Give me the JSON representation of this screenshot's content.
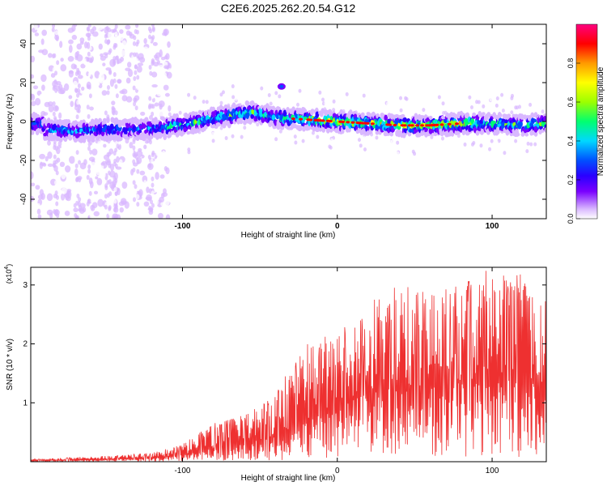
{
  "figure": {
    "title": "C2E6.2025.262.20.54.G12"
  },
  "chart_data": [
    {
      "type": "heatmap",
      "title": "C2E6.2025.262.20.54.G12",
      "xlabel": "Height of straight line (km)",
      "ylabel": "Frequency (Hz)",
      "xlim": [
        -198,
        135
      ],
      "ylim": [
        -50,
        50
      ],
      "x_ticks": [
        -100,
        0,
        100
      ],
      "y_ticks": [
        -40,
        -20,
        0,
        20,
        40
      ],
      "colorbar": {
        "label": "Normalized spectral amplitude",
        "range": [
          0,
          1
        ],
        "ticks": [
          "0.0",
          "0.2",
          "0.4",
          "0.6",
          "0.8"
        ],
        "tick_values": [
          0,
          0.2,
          0.4,
          0.6,
          0.8
        ],
        "colors": [
          "#ffffff",
          "#d9b8ff",
          "#7a00ff",
          "#2a00ff",
          "#0050ff",
          "#00d8ff",
          "#00ff70",
          "#9cff00",
          "#ffff00",
          "#ff9a00",
          "#ff0000",
          "#ff0080"
        ]
      },
      "ridge": {
        "description_points_x": [
          -190,
          -170,
          -150,
          -130,
          -110,
          -90,
          -70,
          -55,
          -40,
          -20,
          0,
          20,
          40,
          60,
          80,
          100,
          120,
          135
        ],
        "frequency_hz": [
          -4,
          -5,
          -4,
          -4,
          -3,
          0,
          3,
          5,
          2,
          1,
          0,
          -1,
          -2,
          -2,
          -1,
          -1,
          -2,
          -1
        ]
      },
      "outlier": {
        "x": -36,
        "frequency_hz": 18
      }
    },
    {
      "type": "line",
      "title": "",
      "xlabel": "Height of straight line (km)",
      "ylabel": "SNR (10 * v/v)",
      "scale_label": "(x10",
      "scale_exponent": "4",
      "xlim": [
        -198,
        135
      ],
      "ylim": [
        0,
        3.3
      ],
      "x_ticks": [
        -100,
        0,
        100
      ],
      "y_ticks": [
        1,
        2,
        3
      ],
      "color": "#ee3030",
      "series": [
        {
          "name": "SNR",
          "envelope_x": [
            -198,
            -150,
            -120,
            -100,
            -80,
            -60,
            -40,
            -20,
            0,
            20,
            40,
            60,
            80,
            100,
            120,
            135
          ],
          "envelope_mean": [
            0.02,
            0.04,
            0.05,
            0.12,
            0.22,
            0.3,
            0.45,
            0.7,
            0.9,
            1.2,
            1.3,
            1.25,
            1.35,
            1.4,
            1.35,
            1.3
          ],
          "envelope_max": [
            0.04,
            0.1,
            0.15,
            0.3,
            0.65,
            0.8,
            1.2,
            2.0,
            2.2,
            2.7,
            3.0,
            2.9,
            3.0,
            3.3,
            3.2,
            2.9
          ]
        }
      ]
    }
  ]
}
